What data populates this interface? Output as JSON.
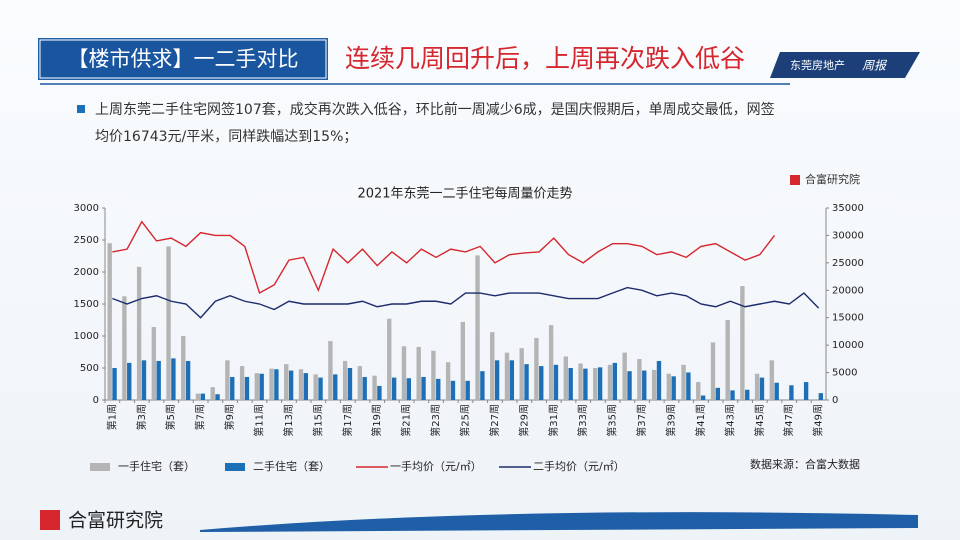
{
  "header": {
    "tag": "【楼市供求】一二手对比",
    "headline": "连续几周回升后，上周再次跌入低谷",
    "brand": "东莞房地产",
    "brand_issue": "周报"
  },
  "bullet": [
    "上周东莞二手住宅网签107套，成交再次跌入低谷，环比前一周减少6成，是国庆假期后，单周成交最低，网签",
    "均价16743元/平米，同样跌幅达到15%；"
  ],
  "source_logo": "合富研究院",
  "source_note": "数据来源：合富大数据",
  "footer_logo": "合富研究院",
  "chart_data": {
    "type": "bar_line",
    "title": "2021年东莞一二手住宅每周量价走势",
    "categories": [
      "第1周",
      null,
      "第3周",
      null,
      "第5周",
      null,
      "第7周",
      null,
      "第9周",
      null,
      "第11周",
      null,
      "第13周",
      null,
      "第15周",
      null,
      "第17周",
      null,
      "第19周",
      null,
      "第21周",
      null,
      "第23周",
      null,
      "第25周",
      null,
      "第27周",
      null,
      "第29周",
      null,
      "第31周",
      null,
      "第33周",
      null,
      "第35周",
      null,
      "第37周",
      null,
      "第39周",
      null,
      "第41周",
      null,
      "第43周",
      null,
      "第45周",
      null,
      "第47周",
      null,
      "第49周"
    ],
    "ylim": [
      0,
      3000
    ],
    "yticks": [
      0,
      500,
      1000,
      1500,
      2000,
      2500,
      3000
    ],
    "y2lim": [
      0,
      35000
    ],
    "y2ticks": [
      0,
      5000,
      10000,
      15000,
      20000,
      25000,
      30000,
      35000
    ],
    "series": [
      {
        "name": "一手住宅（套）",
        "kind": "bar",
        "color": "#b4b4b4",
        "values": [
          2450,
          1620,
          2080,
          1140,
          2400,
          1000,
          100,
          200,
          620,
          530,
          420,
          490,
          560,
          480,
          400,
          920,
          610,
          530,
          380,
          1270,
          840,
          830,
          770,
          590,
          1220,
          2260,
          1060,
          740,
          810,
          970,
          1170,
          680,
          570,
          500,
          550,
          740,
          640,
          470,
          410,
          550,
          280,
          900,
          1250,
          1780,
          410,
          620,
          null,
          null,
          null
        ]
      },
      {
        "name": "二手住宅（套）",
        "kind": "bar",
        "color": "#1f6fb6",
        "values": [
          500,
          580,
          620,
          610,
          650,
          610,
          100,
          90,
          360,
          360,
          410,
          480,
          460,
          420,
          350,
          400,
          500,
          360,
          220,
          350,
          340,
          360,
          330,
          300,
          300,
          450,
          620,
          620,
          560,
          530,
          550,
          500,
          490,
          510,
          580,
          450,
          460,
          610,
          370,
          430,
          70,
          190,
          150,
          160,
          350,
          270,
          230,
          280,
          107
        ]
      },
      {
        "name": "一手均价（元/㎡）",
        "kind": "line",
        "axis": "y2",
        "color": "#d6262e",
        "values": [
          27000,
          27500,
          32500,
          29000,
          29500,
          28000,
          30500,
          30000,
          30000,
          28000,
          19500,
          21000,
          25500,
          26000,
          20000,
          27500,
          25000,
          27500,
          24500,
          27000,
          25000,
          27500,
          26000,
          27500,
          27000,
          28000,
          25000,
          26500,
          26800,
          27000,
          29500,
          26500,
          25000,
          27000,
          28500,
          28500,
          28000,
          26500,
          27000,
          26000,
          28000,
          28500,
          27000,
          25500,
          26500,
          30000,
          null,
          null,
          null
        ]
      },
      {
        "name": "二手均价（元/㎡）",
        "kind": "line",
        "axis": "y2",
        "color": "#1c2b6b",
        "values": [
          18500,
          17500,
          18500,
          19000,
          18000,
          17500,
          15000,
          18000,
          19000,
          18000,
          17500,
          16500,
          18000,
          17500,
          17500,
          17500,
          17500,
          18000,
          17000,
          17500,
          17500,
          18000,
          18000,
          17500,
          19500,
          19500,
          19000,
          19500,
          19500,
          19500,
          19000,
          18500,
          18500,
          18500,
          19500,
          20500,
          20000,
          19000,
          19500,
          19000,
          17500,
          17000,
          18000,
          17000,
          17500,
          18000,
          17500,
          19500,
          16743
        ]
      }
    ]
  }
}
